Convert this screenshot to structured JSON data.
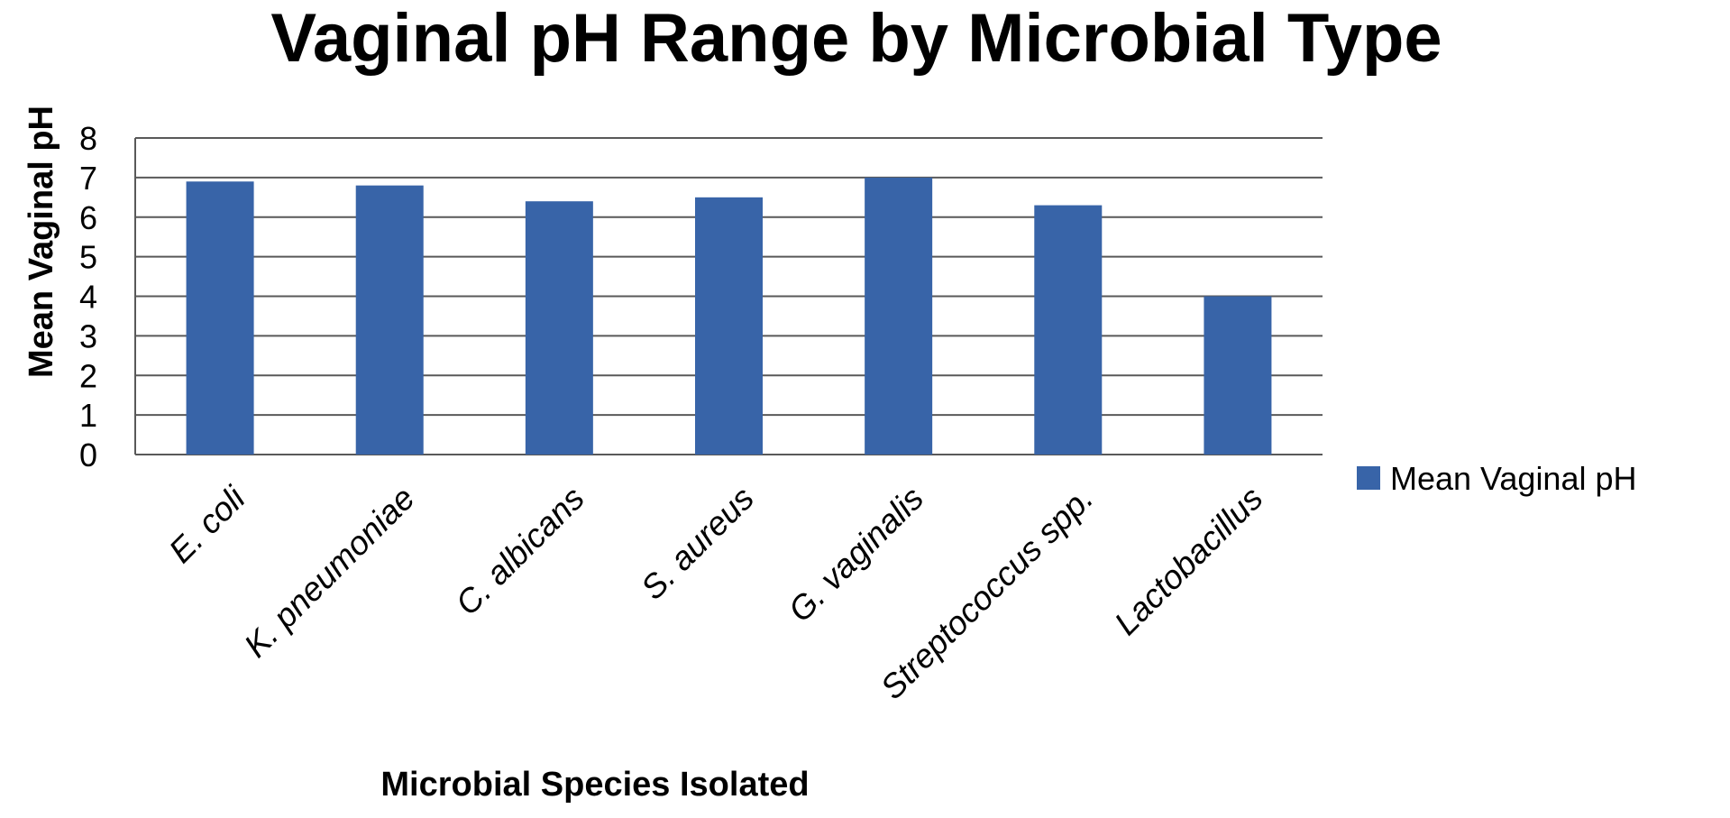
{
  "chart_data": {
    "type": "bar",
    "title": "Vaginal pH Range by Microbial Type",
    "xlabel": "Microbial Species Isolated",
    "ylabel": "Mean Vaginal pH",
    "categories": [
      "E. coli",
      "K. pneumoniae",
      "C. albicans",
      "S. aureus",
      "G. vaginalis",
      "Streptococcus spp.",
      "Lactobacillus"
    ],
    "series": [
      {
        "name": "Mean Vaginal pH",
        "color": "#3864A8",
        "values": [
          6.9,
          6.8,
          6.4,
          6.5,
          7.0,
          6.3,
          4.0
        ]
      }
    ],
    "ylim": [
      0,
      8
    ],
    "yticks": [
      0,
      1,
      2,
      3,
      4,
      5,
      6,
      7,
      8
    ],
    "grid": true,
    "legend_position": "right"
  }
}
